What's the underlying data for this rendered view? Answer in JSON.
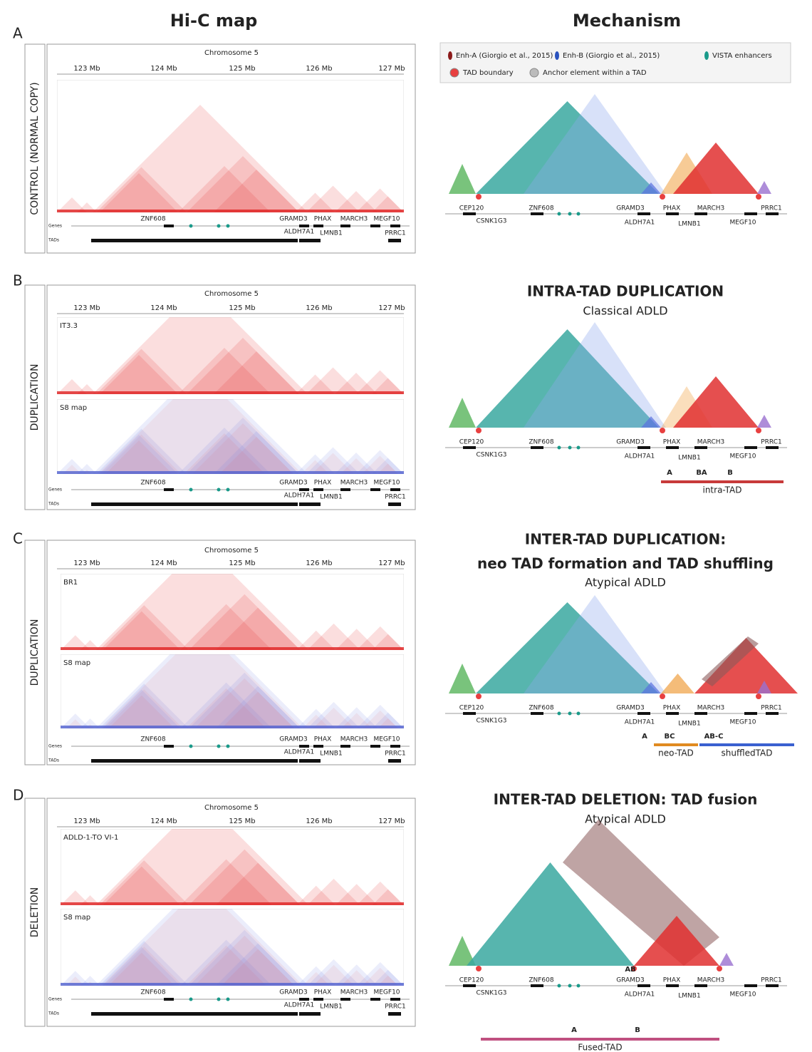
{
  "headers": [
    "Hi-C map",
    "Mechanism"
  ],
  "legend": [
    "Enh-A (Giorgio et al., 2015)",
    "Enh-B (Giorgio et al., 2015)",
    "VISTA enhancers",
    "TAD boundary",
    "Anchor element within a TAD"
  ],
  "hic_axis": {
    "chromosome": "Chromosome 5",
    "ticks": [
      "123 Mb",
      "124 Mb",
      "125 Mb",
      "126 Mb",
      "127 Mb"
    ]
  },
  "hic_tracks": {
    "labels": [
      "Genes",
      "TADs"
    ],
    "genes": [
      "ZNF608",
      "GRAMD3",
      "PHAX",
      "MARCH3",
      "MEGF10",
      "ALDH7A1",
      "LMNB1",
      "PRRC1"
    ]
  },
  "mechanism_genes": [
    "CEP120",
    "CSNK1G3",
    "ZNF608",
    "GRAMD3",
    "ALDH7A1",
    "PHAX",
    "LMNB1",
    "MARCH3",
    "MEGF10",
    "PRRC1"
  ],
  "panels": [
    {
      "letter": "A",
      "row_label": "CONTROL (NORMAL COPY)",
      "maps": [],
      "mechanism": {
        "title": [],
        "subtitle": [],
        "segments": [],
        "brackets": []
      }
    },
    {
      "letter": "B",
      "row_label": "DUPLICATION",
      "maps": [
        "IT3.3",
        "S8 map"
      ],
      "mechanism": {
        "title": [
          "INTRA-TAD DUPLICATION"
        ],
        "subtitle": [
          "Classical ADLD"
        ],
        "segments": [
          "A",
          "BA",
          "B"
        ],
        "brackets": [
          "intra-TAD"
        ]
      }
    },
    {
      "letter": "C",
      "row_label": "DUPLICATION",
      "maps": [
        "BR1",
        "S8 map"
      ],
      "mechanism": {
        "title": [
          "INTER-TAD DUPLICATION:",
          "neo TAD formation and TAD shuffling"
        ],
        "subtitle": [
          "Atypical ADLD"
        ],
        "segments": [
          "A",
          "BC",
          "AB-C"
        ],
        "brackets": [
          "neo-TAD",
          "shuffledTAD"
        ]
      }
    },
    {
      "letter": "D",
      "row_label": "DELETION",
      "maps": [
        "ADLD-1-TO VI-1",
        "S8 map"
      ],
      "mechanism": {
        "title": [
          "INTER-TAD DELETION: TAD fusion"
        ],
        "subtitle": [
          "Atypical ADLD"
        ],
        "segments": [
          "AB",
          "A",
          "B"
        ],
        "brackets": [
          "Fused-TAD"
        ]
      }
    }
  ]
}
